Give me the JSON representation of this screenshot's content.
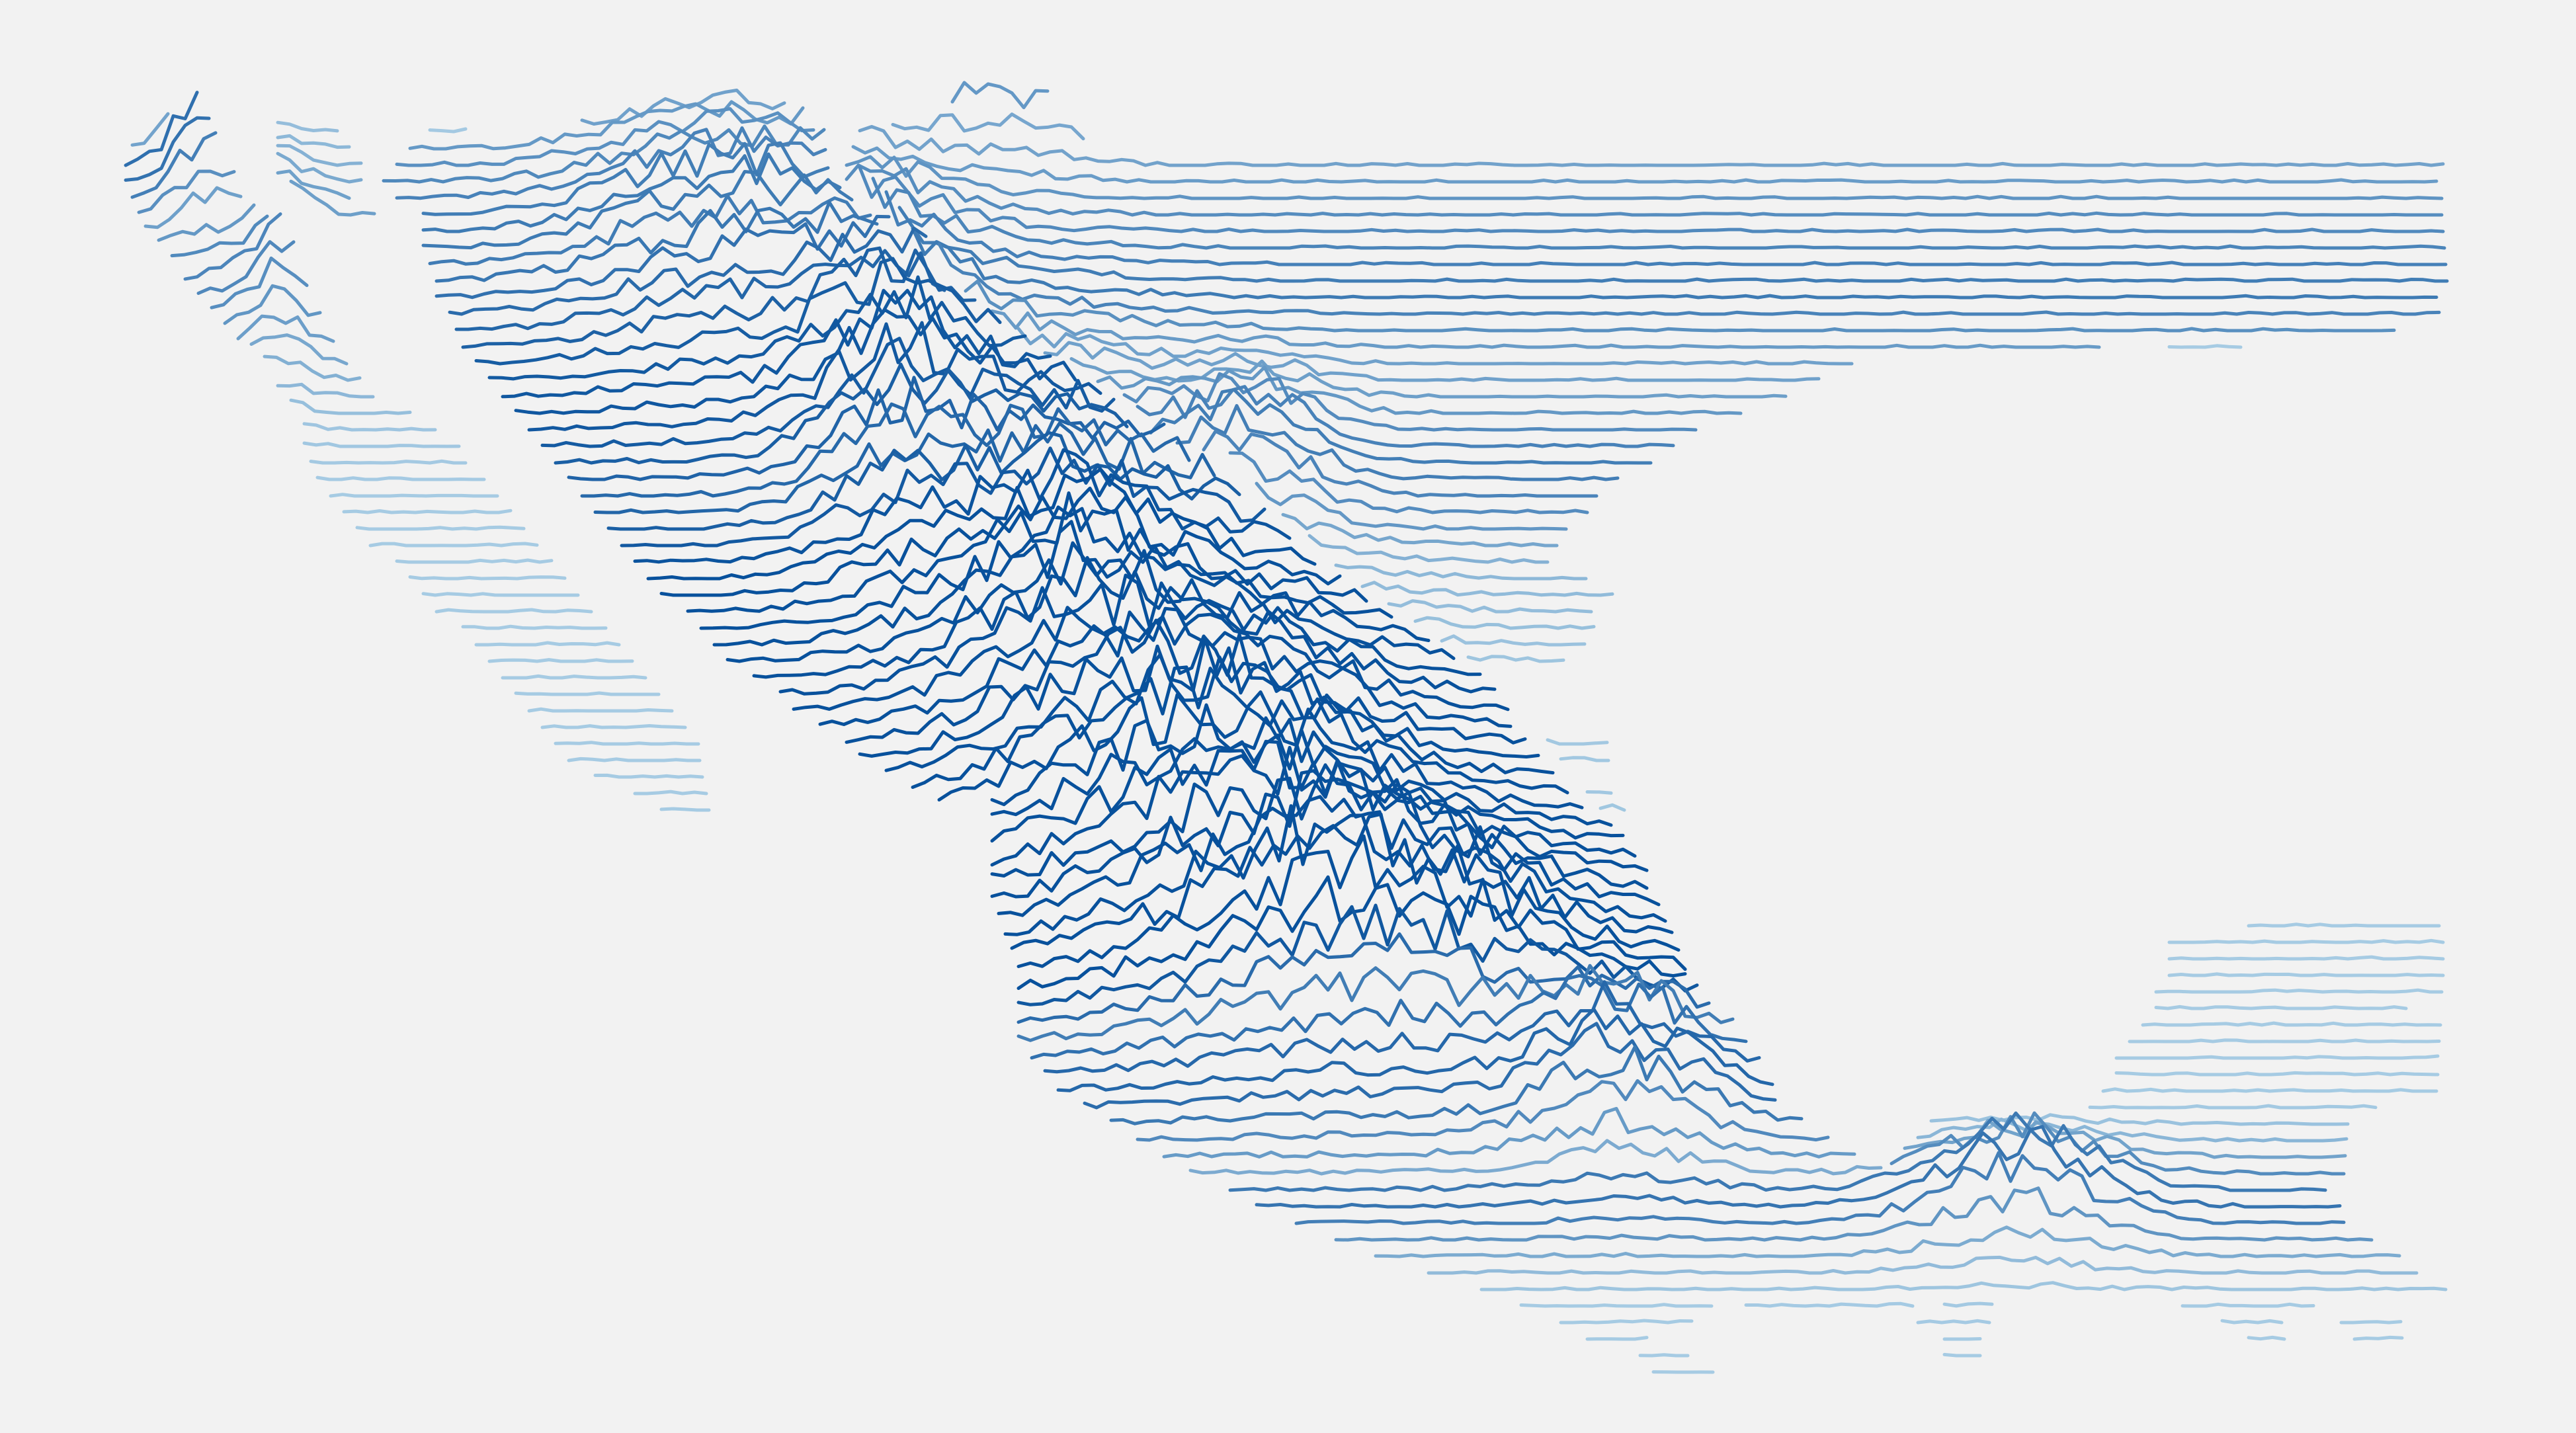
{
  "map": {
    "style": "joy-division ridgeline relief",
    "region": "Mexico",
    "background_color": "#f2f2f2",
    "line_color_low": "#a6cbe3",
    "line_color_high": "#08519c",
    "labels_shown": false
  }
}
